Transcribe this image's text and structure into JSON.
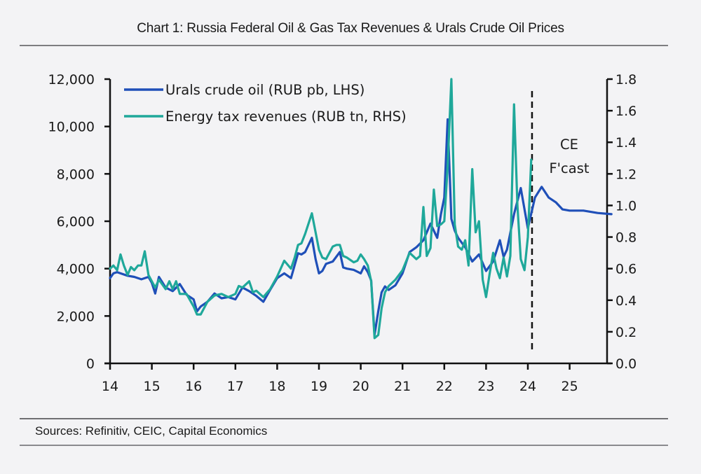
{
  "header": {
    "title": "Chart 1: Russia Federal Oil & Gas Tax Revenues & Urals Crude Oil Prices"
  },
  "footer": {
    "sources": "Sources: Refinitiv, CEIC, Capital Economics"
  },
  "colors": {
    "urals": "#1f4fb8",
    "tax": "#1fa89a",
    "axis": "#111111",
    "background": "#f3f3f5"
  },
  "chart_data": {
    "type": "line",
    "title": "Chart 1: Russia Federal Oil & Gas Tax Revenues & Urals Crude Oil Prices",
    "xlabel": "",
    "ylabel": "RUB pb (LHS)",
    "y2label": "RUB tn (RHS)",
    "grid": false,
    "legend_position": "top-left",
    "xlim": [
      14,
      26
    ],
    "ylim": [
      0,
      12000
    ],
    "y2lim": [
      0,
      1.8
    ],
    "x_ticks": [
      "14",
      "15",
      "16",
      "17",
      "18",
      "19",
      "20",
      "21",
      "22",
      "23",
      "24",
      "25"
    ],
    "y_ticks": [
      "0",
      "2,000",
      "4,000",
      "6,000",
      "8,000",
      "10,000",
      "12,000"
    ],
    "y2_ticks": [
      "0.0",
      "0.2",
      "0.4",
      "0.6",
      "0.8",
      "1.0",
      "1.2",
      "1.4",
      "1.6",
      "1.8"
    ],
    "forecast_marker": {
      "x": 24.1,
      "label_line1": "CE",
      "label_line2": "F'cast"
    },
    "series": [
      {
        "name": "Urals crude oil (RUB pb, LHS)",
        "axis": "left",
        "x": [
          14.0,
          14.08,
          14.17,
          14.25,
          14.42,
          14.58,
          14.75,
          14.92,
          15.0,
          15.08,
          15.17,
          15.33,
          15.5,
          15.67,
          15.83,
          16.0,
          16.08,
          16.17,
          16.33,
          16.5,
          16.67,
          16.83,
          17.0,
          17.17,
          17.33,
          17.5,
          17.67,
          17.83,
          18.0,
          18.17,
          18.33,
          18.5,
          18.58,
          18.67,
          18.83,
          18.92,
          19.0,
          19.08,
          19.17,
          19.33,
          19.5,
          19.58,
          19.67,
          19.83,
          20.0,
          20.08,
          20.17,
          20.25,
          20.33,
          20.42,
          20.5,
          20.58,
          20.67,
          20.83,
          21.0,
          21.17,
          21.33,
          21.5,
          21.67,
          21.83,
          21.92,
          22.0,
          22.08,
          22.17,
          22.25,
          22.33,
          22.5,
          22.67,
          22.83,
          23.0,
          23.17,
          23.33,
          23.42,
          23.5,
          23.67,
          23.83,
          24.0,
          24.17,
          24.33,
          24.5,
          24.67,
          24.83,
          25.0,
          25.33,
          25.67,
          26.0
        ],
        "values": [
          3600,
          3800,
          3850,
          3800,
          3700,
          3650,
          3550,
          3650,
          3400,
          2950,
          3650,
          3200,
          3050,
          3350,
          2900,
          2700,
          2200,
          2400,
          2600,
          2950,
          2750,
          2800,
          2700,
          3200,
          3050,
          2850,
          2600,
          3100,
          3600,
          3800,
          3600,
          4650,
          4600,
          4700,
          5300,
          4400,
          3800,
          3900,
          4200,
          4300,
          4700,
          4050,
          4000,
          3950,
          3800,
          4100,
          3850,
          3500,
          1200,
          2200,
          3000,
          3250,
          3100,
          3300,
          3800,
          4700,
          4900,
          5200,
          5900,
          5300,
          6300,
          7000,
          10300,
          6100,
          5600,
          5300,
          4900,
          4300,
          4600,
          3900,
          4300,
          5200,
          4500,
          4800,
          6300,
          7400,
          5700,
          7000,
          7450,
          7000,
          6800,
          6500,
          6450,
          6450,
          6350,
          6300
        ]
      },
      {
        "name": "Energy tax revenues (RUB tn, RHS)",
        "axis": "right",
        "x": [
          14.0,
          14.08,
          14.17,
          14.25,
          14.33,
          14.42,
          14.5,
          14.58,
          14.67,
          14.75,
          14.83,
          14.92,
          15.0,
          15.08,
          15.17,
          15.33,
          15.42,
          15.5,
          15.58,
          15.67,
          15.83,
          16.0,
          16.08,
          16.17,
          16.33,
          16.5,
          16.67,
          16.83,
          17.0,
          17.08,
          17.17,
          17.33,
          17.42,
          17.5,
          17.67,
          17.83,
          18.0,
          18.17,
          18.33,
          18.42,
          18.5,
          18.58,
          18.67,
          18.83,
          18.92,
          19.0,
          19.08,
          19.17,
          19.33,
          19.42,
          19.5,
          19.58,
          19.67,
          19.83,
          19.92,
          20.0,
          20.08,
          20.17,
          20.25,
          20.33,
          20.42,
          20.5,
          20.58,
          20.67,
          20.83,
          21.0,
          21.17,
          21.33,
          21.42,
          21.5,
          21.58,
          21.67,
          21.75,
          21.83,
          21.92,
          22.0,
          22.08,
          22.17,
          22.25,
          22.33,
          22.42,
          22.5,
          22.58,
          22.67,
          22.75,
          22.83,
          22.92,
          23.0,
          23.08,
          23.17,
          23.25,
          23.33,
          23.42,
          23.5,
          23.58,
          23.67,
          23.75,
          23.83,
          23.92,
          24.0,
          24.08
        ],
        "values": [
          0.6,
          0.62,
          0.59,
          0.69,
          0.62,
          0.56,
          0.61,
          0.59,
          0.62,
          0.62,
          0.71,
          0.56,
          0.52,
          0.48,
          0.53,
          0.47,
          0.52,
          0.47,
          0.52,
          0.44,
          0.44,
          0.36,
          0.31,
          0.31,
          0.39,
          0.43,
          0.44,
          0.42,
          0.44,
          0.49,
          0.48,
          0.52,
          0.45,
          0.46,
          0.42,
          0.47,
          0.55,
          0.65,
          0.6,
          0.67,
          0.75,
          0.76,
          0.82,
          0.95,
          0.83,
          0.72,
          0.67,
          0.66,
          0.74,
          0.75,
          0.75,
          0.68,
          0.67,
          0.64,
          0.65,
          0.69,
          0.66,
          0.62,
          0.52,
          0.16,
          0.18,
          0.35,
          0.45,
          0.49,
          0.53,
          0.59,
          0.7,
          0.66,
          0.68,
          0.99,
          0.68,
          0.73,
          1.1,
          0.87,
          0.88,
          0.9,
          1.25,
          1.8,
          0.88,
          0.74,
          0.72,
          0.78,
          0.62,
          1.23,
          0.83,
          0.9,
          0.53,
          0.42,
          0.56,
          0.7,
          0.6,
          0.54,
          0.67,
          0.55,
          0.68,
          1.64,
          1.0,
          0.66,
          0.59,
          0.8,
          1.29
        ]
      }
    ]
  }
}
